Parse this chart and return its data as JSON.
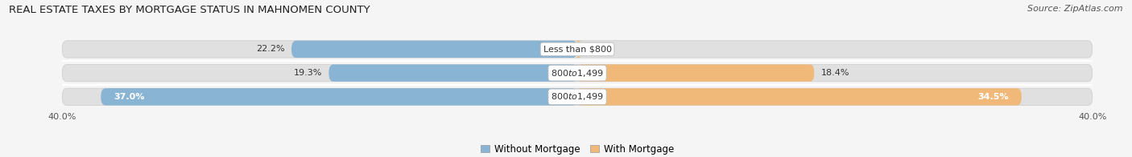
{
  "title": "REAL ESTATE TAXES BY MORTGAGE STATUS IN MAHNOMEN COUNTY",
  "source": "Source: ZipAtlas.com",
  "rows": [
    {
      "label": "Less than $800",
      "without_mortgage": 22.2,
      "with_mortgage": 0.18,
      "wm_label_inside": false,
      "wom_label_inside": false
    },
    {
      "label": "$800 to $1,499",
      "without_mortgage": 19.3,
      "with_mortgage": 18.4,
      "wm_label_inside": false,
      "wom_label_inside": false
    },
    {
      "label": "$800 to $1,499",
      "without_mortgage": 37.0,
      "with_mortgage": 34.5,
      "wm_label_inside": true,
      "wom_label_inside": true
    }
  ],
  "xlim_left": -40,
  "xlim_right": 40,
  "color_without": "#8ab4d4",
  "color_with": "#f0b97a",
  "color_track": "#e0e0e0",
  "bar_height": 0.72,
  "background_color": "#f5f5f5",
  "legend_label_without": "Without Mortgage",
  "legend_label_with": "With Mortgage",
  "title_fontsize": 9.5,
  "source_fontsize": 8,
  "label_fontsize": 8,
  "value_fontsize": 8,
  "axis_fontsize": 8,
  "legend_fontsize": 8.5,
  "row_sep_color": "#ffffff",
  "center_label_bg": "white"
}
